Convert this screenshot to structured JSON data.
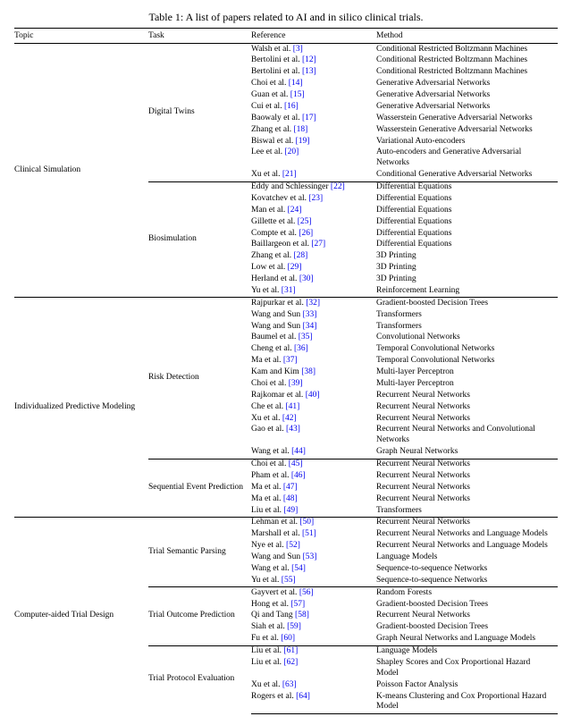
{
  "caption": "Table 1: A list of papers related to AI and in silico clinical trials.",
  "headers": {
    "topic": "Topic",
    "task": "Task",
    "reference": "Reference",
    "method": "Method"
  },
  "topics": [
    {
      "name": "Clinical Simulation",
      "tasks": [
        {
          "name": "Digital Twins",
          "rows": [
            {
              "ref": "Walsh et al.",
              "cite": "[3]",
              "method": "Conditional Restricted Boltzmann Machines"
            },
            {
              "ref": "Bertolini et al.",
              "cite": "[12]",
              "method": "Conditional Restricted Boltzmann Machines"
            },
            {
              "ref": "Bertolini et al.",
              "cite": "[13]",
              "method": "Conditional Restricted Boltzmann Machines"
            },
            {
              "ref": "Choi et al.",
              "cite": "[14]",
              "method": "Generative Adversarial Networks"
            },
            {
              "ref": "Guan et al.",
              "cite": "[15]",
              "method": "Generative Adversarial Networks"
            },
            {
              "ref": "Cui et al.",
              "cite": "[16]",
              "method": "Generative Adversarial Networks"
            },
            {
              "ref": "Baowaly et al.",
              "cite": "[17]",
              "method": "Wasserstein Generative Adversarial Networks"
            },
            {
              "ref": "Zhang et al.",
              "cite": "[18]",
              "method": "Wasserstein Generative Adversarial Networks"
            },
            {
              "ref": "Biswal et al.",
              "cite": "[19]",
              "method": "Variational Auto-encoders"
            },
            {
              "ref": "Lee et al.",
              "cite": "[20]",
              "method": "Auto-encoders and Generative Adversarial Networks"
            },
            {
              "ref": "Xu et al.",
              "cite": "[21]",
              "method": "Conditional Generative Adversarial Networks"
            }
          ]
        },
        {
          "name": "Biosimulation",
          "rows": [
            {
              "ref": "Eddy and Schlessinger",
              "cite": "[22]",
              "method": "Differential Equations"
            },
            {
              "ref": "Kovatchev et al.",
              "cite": "[23]",
              "method": "Differential Equations"
            },
            {
              "ref": "Man et al.",
              "cite": "[24]",
              "method": "Differential Equations"
            },
            {
              "ref": "Gillette et al.",
              "cite": "[25]",
              "method": "Differential Equations"
            },
            {
              "ref": "Compte et al.",
              "cite": "[26]",
              "method": "Differential Equations"
            },
            {
              "ref": "Baillargeon et al.",
              "cite": "[27]",
              "method": "Differential Equations"
            },
            {
              "ref": "Zhang et al.",
              "cite": "[28]",
              "method": "3D Printing"
            },
            {
              "ref": "Low et al.",
              "cite": "[29]",
              "method": "3D Printing"
            },
            {
              "ref": "Herland et al.",
              "cite": "[30]",
              "method": "3D Printing"
            },
            {
              "ref": "Yu et al.",
              "cite": "[31]",
              "method": "Reinforcement Learning"
            }
          ]
        }
      ]
    },
    {
      "name": "Individualized Predictive Modeling",
      "tasks": [
        {
          "name": "Risk Detection",
          "rows": [
            {
              "ref": "Rajpurkar et al.",
              "cite": "[32]",
              "method": "Gradient-boosted Decision Trees"
            },
            {
              "ref": "Wang and Sun",
              "cite": "[33]",
              "method": "Transformers"
            },
            {
              "ref": "Wang and Sun",
              "cite": "[34]",
              "method": "Transformers"
            },
            {
              "ref": "Baumel et al.",
              "cite": "[35]",
              "method": "Convolutional Networks"
            },
            {
              "ref": "Cheng et al.",
              "cite": "[36]",
              "method": "Temporal Convolutional Networks"
            },
            {
              "ref": "Ma et al.",
              "cite": "[37]",
              "method": "Temporal Convolutional Networks"
            },
            {
              "ref": "Kam and Kim",
              "cite": "[38]",
              "method": "Multi-layer Perceptron"
            },
            {
              "ref": "Choi et al.",
              "cite": "[39]",
              "method": "Multi-layer Perceptron"
            },
            {
              "ref": "Rajkomar et al.",
              "cite": "[40]",
              "method": "Recurrent Neural Networks"
            },
            {
              "ref": "Che et al.",
              "cite": "[41]",
              "method": "Recurrent Neural Networks"
            },
            {
              "ref": "Xu et al.",
              "cite": "[42]",
              "method": "Recurrent Neural Networks"
            },
            {
              "ref": "Gao et al.",
              "cite": "[43]",
              "method": "Recurrent Neural Networks and Convolutional Networks"
            },
            {
              "ref": "Wang et al.",
              "cite": "[44]",
              "method": "Graph Neural Networks"
            }
          ]
        },
        {
          "name": "Sequential Event Prediction",
          "rows": [
            {
              "ref": "Choi et al.",
              "cite": "[45]",
              "method": "Recurrent Neural Networks"
            },
            {
              "ref": "Pham et al.",
              "cite": "[46]",
              "method": "Recurrent Neural Networks"
            },
            {
              "ref": "Ma et al.",
              "cite": "[47]",
              "method": "Recurrent Neural Networks"
            },
            {
              "ref": "Ma et al.",
              "cite": "[48]",
              "method": "Recurrent Neural Networks"
            },
            {
              "ref": "Liu et al.",
              "cite": "[49]",
              "method": "Transformers"
            }
          ]
        }
      ]
    },
    {
      "name": "Computer-aided Trial Design",
      "tasks": [
        {
          "name": "Trial Semantic Parsing",
          "rows": [
            {
              "ref": "Lehman et al.",
              "cite": "[50]",
              "method": "Recurrent Neural Networks"
            },
            {
              "ref": "Marshall et al.",
              "cite": "[51]",
              "method": "Recurrent Neural Networks and Language Models"
            },
            {
              "ref": "Nye et al.",
              "cite": "[52]",
              "method": "Recurrent Neural Networks and Language Models"
            },
            {
              "ref": "Wang and Sun",
              "cite": "[53]",
              "method": "Language Models"
            },
            {
              "ref": "Wang et al.",
              "cite": "[54]",
              "method": "Sequence-to-sequence Networks"
            },
            {
              "ref": "Yu et al.",
              "cite": "[55]",
              "method": "Sequence-to-sequence Networks"
            }
          ]
        },
        {
          "name": "Trial Outcome Prediction",
          "rows": [
            {
              "ref": "Gayvert et al.",
              "cite": "[56]",
              "method": "Random Forests"
            },
            {
              "ref": "Hong et al.",
              "cite": "[57]",
              "method": "Gradient-boosted Decision Trees"
            },
            {
              "ref": "Qi and Tang",
              "cite": "[58]",
              "method": "Recurrent Neural Networks"
            },
            {
              "ref": "Siah et al.",
              "cite": "[59]",
              "method": "Gradient-boosted Decision Trees"
            },
            {
              "ref": "Fu et al.",
              "cite": "[60]",
              "method": "Graph Neural Networks and Language Models"
            }
          ]
        },
        {
          "name": "Trial Protocol Evaluation",
          "rows": [
            {
              "ref": "Liu et al.",
              "cite": "[61]",
              "method": "Language Models"
            },
            {
              "ref": "Liu et al.",
              "cite": "[62]",
              "method": "Shapley Scores and Cox Proportional Hazard Model"
            },
            {
              "ref": "Xu et al.",
              "cite": "[63]",
              "method": "Poisson Factor Analysis"
            },
            {
              "ref": "Rogers et al.",
              "cite": "[64]",
              "method": "K-means Clustering and Cox Proportional Hazard Model"
            }
          ]
        }
      ]
    }
  ]
}
